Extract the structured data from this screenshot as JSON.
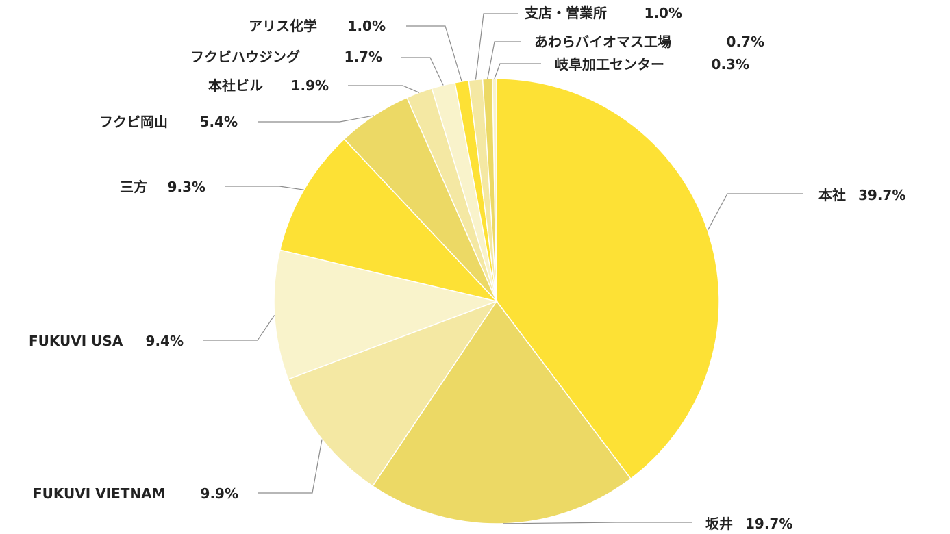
{
  "chart_data": {
    "type": "pie",
    "title": "",
    "start_angle_deg": 0,
    "direction": "clockwise",
    "slices": [
      {
        "name": "本社",
        "value": 39.7,
        "value_label": "39.7%",
        "color": "#fde135"
      },
      {
        "name": "坂井",
        "value": 19.7,
        "value_label": "19.7%",
        "color": "#ecd965"
      },
      {
        "name": "FUKUVI VIETNAM",
        "value": 9.9,
        "value_label": "9.9%",
        "color": "#f4e8a3"
      },
      {
        "name": "FUKUVI USA",
        "value": 9.4,
        "value_label": "9.4%",
        "color": "#f9f3cb"
      },
      {
        "name": "三方",
        "value": 9.3,
        "value_label": "9.3%",
        "color": "#fde135"
      },
      {
        "name": "フクビ岡山",
        "value": 5.4,
        "value_label": "5.4%",
        "color": "#ecd965"
      },
      {
        "name": "本社ビル",
        "value": 1.9,
        "value_label": "1.9%",
        "color": "#f4e8a3"
      },
      {
        "name": "フクビハウジング",
        "value": 1.7,
        "value_label": "1.7%",
        "color": "#f9f3cb"
      },
      {
        "name": "アリス化学",
        "value": 1.0,
        "value_label": "1.0%",
        "color": "#fde135"
      },
      {
        "name": "支店・営業所",
        "value": 1.0,
        "value_label": "1.0%",
        "color": "#f4e8a3"
      },
      {
        "name": "あわらバイオマス工場",
        "value": 0.7,
        "value_label": "0.7%",
        "color": "#ecd965"
      },
      {
        "name": "岐阜加工センター",
        "value": 0.3,
        "value_label": "0.3%",
        "color": "#f9f3cb"
      }
    ]
  }
}
